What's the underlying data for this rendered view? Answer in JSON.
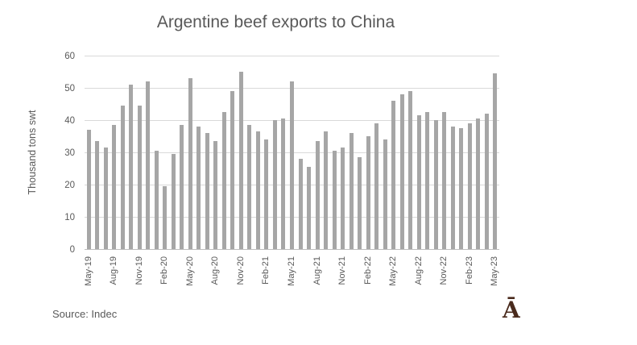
{
  "title": "Argentine beef exports to China",
  "source": "Source: Indec",
  "logo_glyph": "Ā",
  "colors": {
    "bar": "#a6a6a6",
    "gridline": "#d9d9d9",
    "axis_line": "#bfbfbf",
    "text": "#595959",
    "logo": "#4a2b1d"
  },
  "chart_data": {
    "type": "bar",
    "title": "Argentine beef exports to China",
    "ylabel": "Thousand tons swt",
    "xlabel": "",
    "ylim": [
      0,
      60
    ],
    "yticks": [
      0,
      10,
      20,
      30,
      40,
      50,
      60
    ],
    "grid": true,
    "legend": false,
    "x_label_every": 3,
    "x": [
      "May-19",
      "Jun-19",
      "Jul-19",
      "Aug-19",
      "Sep-19",
      "Oct-19",
      "Nov-19",
      "Dec-19",
      "Jan-20",
      "Feb-20",
      "Mar-20",
      "Apr-20",
      "May-20",
      "Jun-20",
      "Jul-20",
      "Aug-20",
      "Sep-20",
      "Oct-20",
      "Nov-20",
      "Dec-20",
      "Jan-21",
      "Feb-21",
      "Mar-21",
      "Apr-21",
      "May-21",
      "Jun-21",
      "Jul-21",
      "Aug-21",
      "Sep-21",
      "Oct-21",
      "Nov-21",
      "Dec-21",
      "Jan-22",
      "Feb-22",
      "Mar-22",
      "Apr-22",
      "May-22",
      "Jun-22",
      "Jul-22",
      "Aug-22",
      "Sep-22",
      "Oct-22",
      "Nov-22",
      "Dec-22",
      "Jan-23",
      "Feb-23",
      "Mar-23",
      "Apr-23",
      "May-23"
    ],
    "values": [
      37,
      33.5,
      31.5,
      38.5,
      44.5,
      51,
      44.5,
      52,
      30.5,
      19.5,
      29.5,
      38.5,
      53,
      38,
      36,
      33.5,
      42.5,
      49,
      55,
      38.5,
      36.5,
      34,
      40,
      40.5,
      52,
      28,
      25.5,
      33.5,
      36.5,
      30.5,
      31.5,
      36,
      28.5,
      35,
      39,
      34,
      46,
      48,
      49,
      41.5,
      42.5,
      40,
      42.5,
      38,
      37.5,
      39,
      40.5,
      42,
      54.5
    ]
  }
}
